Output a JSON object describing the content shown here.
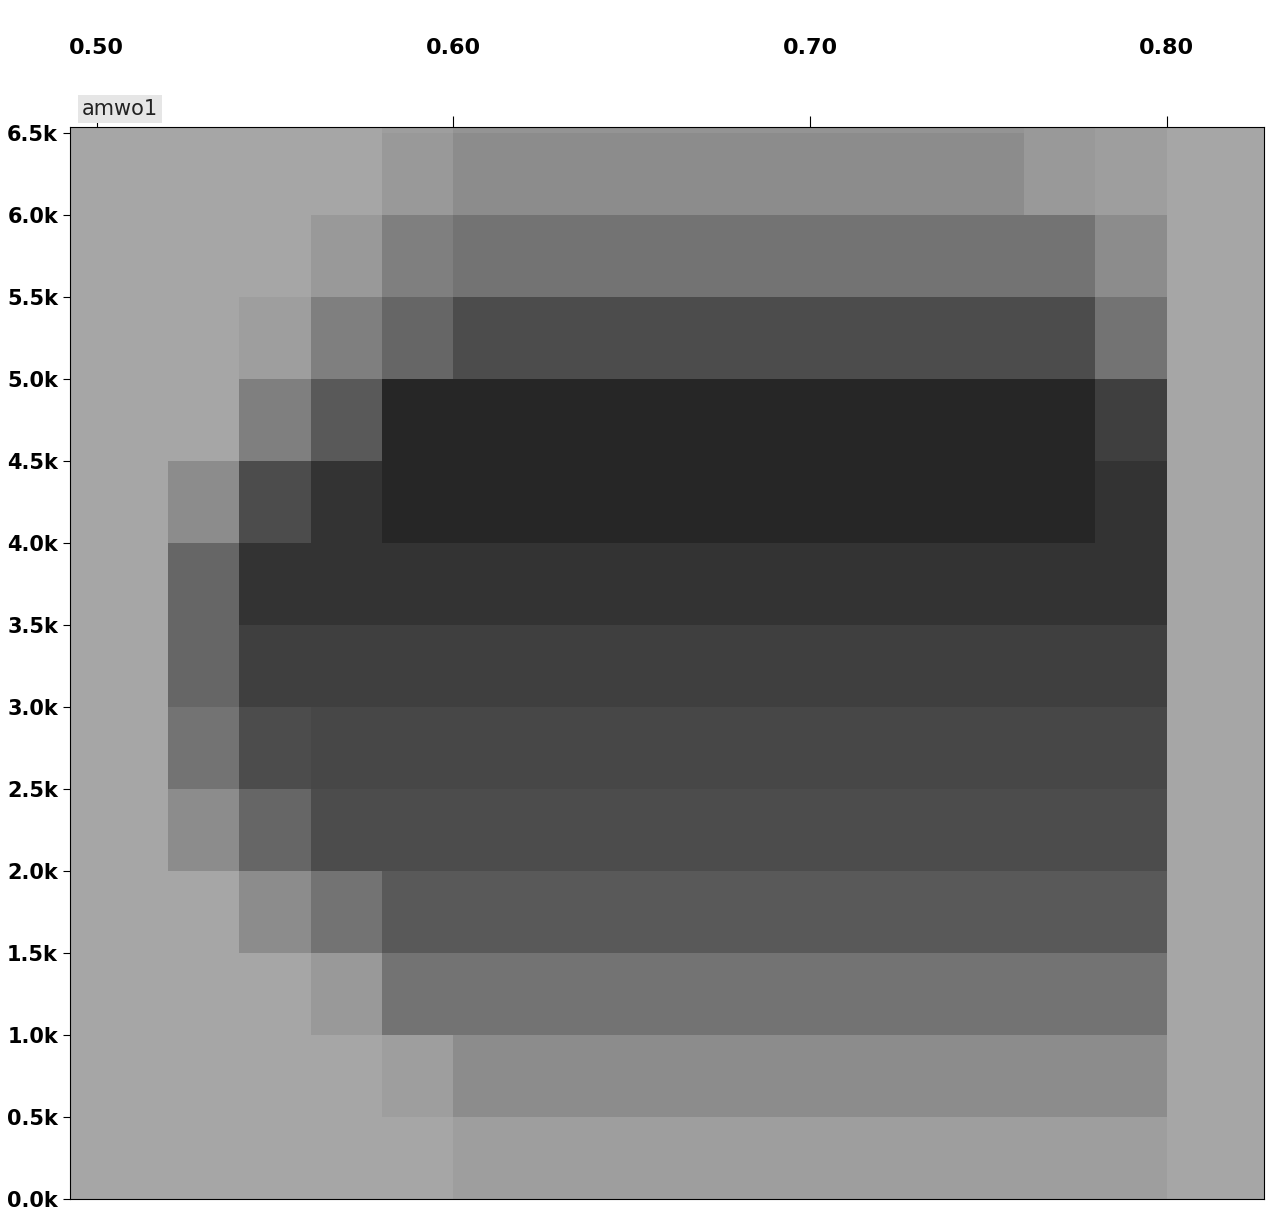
{
  "chart_data": {
    "type": "heatmap",
    "title": "amwo1",
    "xlim": [
      0.4925,
      0.8272
    ],
    "xticks": [
      {
        "value": 0.5,
        "label": "0.50"
      },
      {
        "value": 0.6,
        "label": "0.60"
      },
      {
        "value": 0.7,
        "label": "0.70"
      },
      {
        "value": 0.8,
        "label": "0.80"
      }
    ],
    "ylim": [
      0,
      6535
    ],
    "yticks": [
      {
        "value": 0,
        "label": "0.0k"
      },
      {
        "value": 500,
        "label": "0.5k"
      },
      {
        "value": 1000,
        "label": "1.0k"
      },
      {
        "value": 1500,
        "label": "1.5k"
      },
      {
        "value": 2000,
        "label": "2.0k"
      },
      {
        "value": 2500,
        "label": "2.5k"
      },
      {
        "value": 3000,
        "label": "3.0k"
      },
      {
        "value": 3500,
        "label": "3.5k"
      },
      {
        "value": 4000,
        "label": "4.0k"
      },
      {
        "value": 4500,
        "label": "4.5k"
      },
      {
        "value": 5000,
        "label": "5.0k"
      },
      {
        "value": 5500,
        "label": "5.5k"
      },
      {
        "value": 6000,
        "label": "6.0k"
      },
      {
        "value": 6500,
        "label": "6.5k"
      }
    ],
    "x_edges": [
      0.4925,
      0.52,
      0.54,
      0.56,
      0.58,
      0.6,
      0.62,
      0.64,
      0.66,
      0.68,
      0.7,
      0.72,
      0.74,
      0.76,
      0.78,
      0.8,
      0.8272
    ],
    "y_edges": [
      0,
      500,
      1000,
      1500,
      2000,
      2500,
      3000,
      3500,
      4000,
      4500,
      5000,
      5500,
      6000,
      6500,
      6535
    ],
    "color_range": [
      0,
      1
    ],
    "cells": [
      [
        0.35,
        0.35,
        0.35,
        0.35,
        0.35,
        0.38,
        0.38,
        0.38,
        0.38,
        0.38,
        0.38,
        0.38,
        0.38,
        0.38,
        0.38,
        0.35
      ],
      [
        0.35,
        0.35,
        0.35,
        0.35,
        0.38,
        0.45,
        0.45,
        0.45,
        0.45,
        0.45,
        0.45,
        0.45,
        0.45,
        0.45,
        0.45,
        0.35
      ],
      [
        0.35,
        0.35,
        0.35,
        0.4,
        0.55,
        0.55,
        0.55,
        0.55,
        0.55,
        0.55,
        0.55,
        0.55,
        0.55,
        0.55,
        0.55,
        0.35
      ],
      [
        0.35,
        0.35,
        0.45,
        0.55,
        0.65,
        0.65,
        0.65,
        0.65,
        0.65,
        0.65,
        0.65,
        0.65,
        0.65,
        0.65,
        0.65,
        0.35
      ],
      [
        0.35,
        0.45,
        0.6,
        0.7,
        0.7,
        0.7,
        0.7,
        0.7,
        0.7,
        0.7,
        0.7,
        0.7,
        0.7,
        0.7,
        0.7,
        0.35
      ],
      [
        0.35,
        0.55,
        0.7,
        0.72,
        0.72,
        0.72,
        0.72,
        0.72,
        0.72,
        0.72,
        0.72,
        0.72,
        0.72,
        0.72,
        0.72,
        0.35
      ],
      [
        0.35,
        0.6,
        0.75,
        0.75,
        0.75,
        0.75,
        0.75,
        0.75,
        0.75,
        0.75,
        0.75,
        0.75,
        0.75,
        0.75,
        0.75,
        0.35
      ],
      [
        0.35,
        0.6,
        0.8,
        0.8,
        0.8,
        0.8,
        0.8,
        0.8,
        0.8,
        0.8,
        0.8,
        0.8,
        0.8,
        0.8,
        0.8,
        0.35
      ],
      [
        0.35,
        0.45,
        0.7,
        0.8,
        0.85,
        0.85,
        0.85,
        0.85,
        0.85,
        0.85,
        0.85,
        0.85,
        0.85,
        0.85,
        0.8,
        0.35
      ],
      [
        0.35,
        0.35,
        0.5,
        0.65,
        0.85,
        0.85,
        0.85,
        0.85,
        0.85,
        0.85,
        0.85,
        0.85,
        0.85,
        0.85,
        0.75,
        0.35
      ],
      [
        0.35,
        0.35,
        0.38,
        0.5,
        0.6,
        0.7,
        0.7,
        0.7,
        0.7,
        0.7,
        0.7,
        0.7,
        0.7,
        0.7,
        0.55,
        0.35
      ],
      [
        0.35,
        0.35,
        0.35,
        0.4,
        0.5,
        0.55,
        0.55,
        0.55,
        0.55,
        0.55,
        0.55,
        0.55,
        0.55,
        0.55,
        0.45,
        0.35
      ],
      [
        0.35,
        0.35,
        0.35,
        0.35,
        0.4,
        0.45,
        0.45,
        0.45,
        0.45,
        0.45,
        0.45,
        0.45,
        0.45,
        0.4,
        0.38,
        0.35
      ],
      [
        0.35,
        0.35,
        0.35,
        0.35,
        0.38,
        0.42,
        0.42,
        0.42,
        0.42,
        0.42,
        0.42,
        0.42,
        0.42,
        0.4,
        0.38,
        0.35
      ]
    ]
  }
}
